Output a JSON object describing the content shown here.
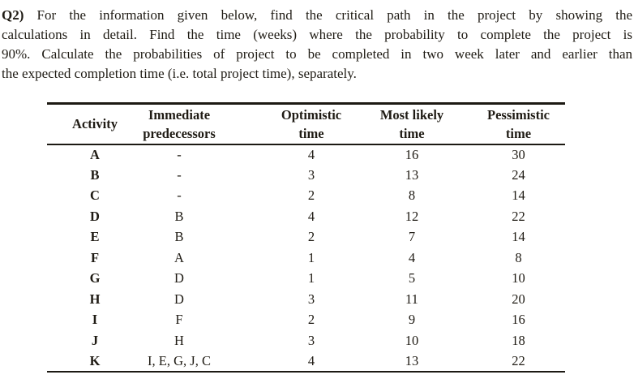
{
  "colors": {
    "background": "#ffffff",
    "text": "#1f1b14",
    "table_rule": "#1c1913"
  },
  "question": {
    "label": "Q2)",
    "lines": [
      "For the information given below, find the critical path in the project by showing the",
      "calculations in detail. Find the time (weeks) where the probability to complete the project is",
      "90%. Calculate the probabilities of project to be completed in two week later and earlier than",
      "the expected completion time (i.e. total project time), separately."
    ]
  },
  "table": {
    "headers": [
      {
        "lines": [
          "Activity"
        ]
      },
      {
        "lines": [
          "Immediate",
          "predecessors"
        ]
      },
      {
        "lines": [
          "Optimistic",
          "time"
        ]
      },
      {
        "lines": [
          "Most likely",
          "time"
        ]
      },
      {
        "lines": [
          "Pessimistic",
          "time"
        ]
      }
    ],
    "rows": [
      {
        "activity": "A",
        "predecessors": "-",
        "optimistic": "4",
        "most_likely": "16",
        "pessimistic": "30"
      },
      {
        "activity": "B",
        "predecessors": "-",
        "optimistic": "3",
        "most_likely": "13",
        "pessimistic": "24"
      },
      {
        "activity": "C",
        "predecessors": "-",
        "optimistic": "2",
        "most_likely": "8",
        "pessimistic": "14"
      },
      {
        "activity": "D",
        "predecessors": "B",
        "optimistic": "4",
        "most_likely": "12",
        "pessimistic": "22"
      },
      {
        "activity": "E",
        "predecessors": "B",
        "optimistic": "2",
        "most_likely": "7",
        "pessimistic": "14"
      },
      {
        "activity": "F",
        "predecessors": "A",
        "optimistic": "1",
        "most_likely": "4",
        "pessimistic": "8"
      },
      {
        "activity": "G",
        "predecessors": "D",
        "optimistic": "1",
        "most_likely": "5",
        "pessimistic": "10"
      },
      {
        "activity": "H",
        "predecessors": "D",
        "optimistic": "3",
        "most_likely": "11",
        "pessimistic": "20"
      },
      {
        "activity": "I",
        "predecessors": "F",
        "optimistic": "2",
        "most_likely": "9",
        "pessimistic": "16"
      },
      {
        "activity": "J",
        "predecessors": "H",
        "optimistic": "3",
        "most_likely": "10",
        "pessimistic": "18"
      },
      {
        "activity": "K",
        "predecessors": "I, E, G, J, C",
        "optimistic": "4",
        "most_likely": "13",
        "pessimistic": "22"
      }
    ]
  }
}
